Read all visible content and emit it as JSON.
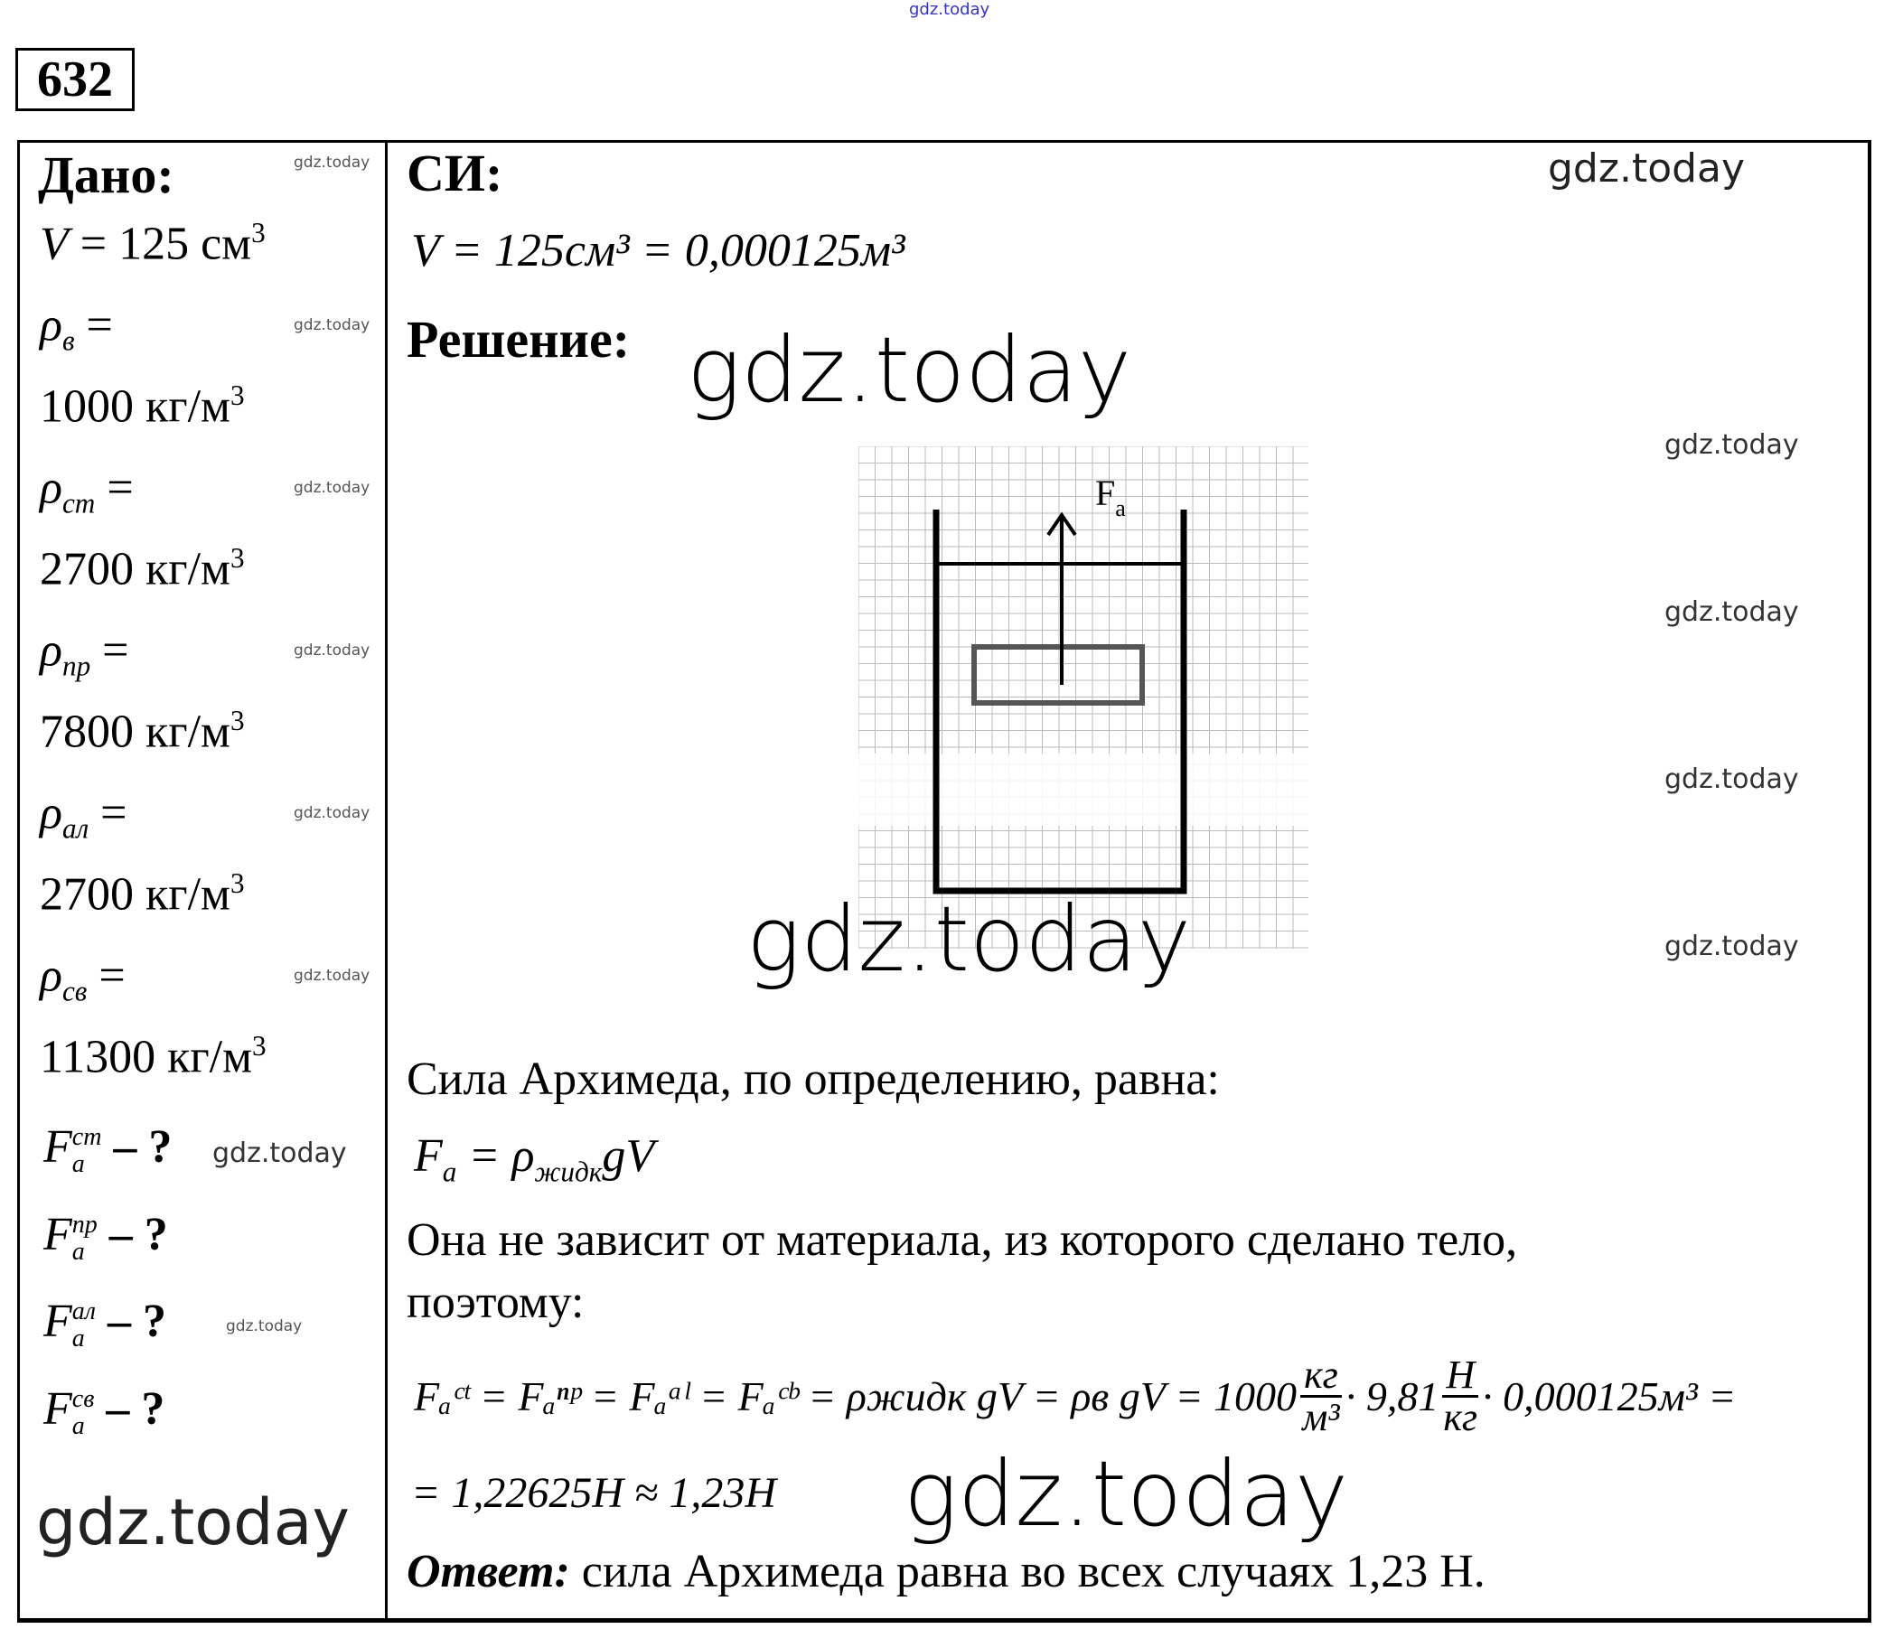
{
  "problem_number": "632",
  "given": {
    "heading": "Дано:",
    "items": [
      {
        "sym": "V",
        "sub": "",
        "rest": " = 125 см",
        "sup": "3"
      },
      {
        "sym": "ρ",
        "sub": "в",
        "rest": " =",
        "sup": ""
      },
      {
        "sym": "",
        "sub": "",
        "rest": "1000 кг/м",
        "sup": "3"
      },
      {
        "sym": "ρ",
        "sub": "ст",
        "rest": " =",
        "sup": ""
      },
      {
        "sym": "",
        "sub": "",
        "rest": "2700 кг/м",
        "sup": "3"
      },
      {
        "sym": "ρ",
        "sub": "пр",
        "rest": " =",
        "sup": ""
      },
      {
        "sym": "",
        "sub": "",
        "rest": "7800 кг/м",
        "sup": "3"
      },
      {
        "sym": "ρ",
        "sub": "ал",
        "rest": " =",
        "sup": ""
      },
      {
        "sym": "",
        "sub": "",
        "rest": "2700 кг/м",
        "sup": "3"
      },
      {
        "sym": "ρ",
        "sub": "св",
        "rest": " =",
        "sup": ""
      },
      {
        "sym": "",
        "sub": "",
        "rest": "11300 кг/м",
        "sup": "3"
      }
    ],
    "unknowns": [
      {
        "sup": "ст",
        "text": "F",
        "sub": "a",
        "q": " – ?"
      },
      {
        "sup": "пр",
        "text": "F",
        "sub": "a",
        "q": " – ?"
      },
      {
        "sup": "ал",
        "text": "F",
        "sub": "a",
        "q": " – ?"
      },
      {
        "sup": "св",
        "text": "F",
        "sub": "a",
        "q": " – ?"
      }
    ]
  },
  "si": {
    "heading": "СИ:",
    "conversion": "V = 125см³ = 0,000125м³"
  },
  "solution": {
    "heading": "Решение:",
    "diagram_label": "F",
    "diagram_label_sub": "a",
    "line1": "Сила Архимеда, по определению, равна:",
    "formula1_lhs": "F",
    "formula1_lhs_sub": "a",
    "formula1_rhs": " = ρ",
    "formula1_rhs_sub": "жидк",
    "formula1_tail": "gV",
    "line2": "Она не зависит от материала, из которого сделано тело,",
    "line3": "поэтому:",
    "formula2_main": "Fₐᶜᵗ = Fₐⁿᵖ = Fₐᵃˡ = Fₐᶜᵇ = ρжидк gV = ρв gV = 1000",
    "frac1_num": "кг",
    "frac1_den": "м³",
    "formula2_mid": "· 9,81",
    "frac2_num": "Н",
    "frac2_den": "кг",
    "formula2_end": "· 0,000125м³ =",
    "formula3": "= 1,22625Н ≈ 1,23Н",
    "answer_label": "Ответ:",
    "answer_text": " сила Архимеда равна во всех случаях 1,23 Н."
  },
  "watermark": "gdz.today"
}
